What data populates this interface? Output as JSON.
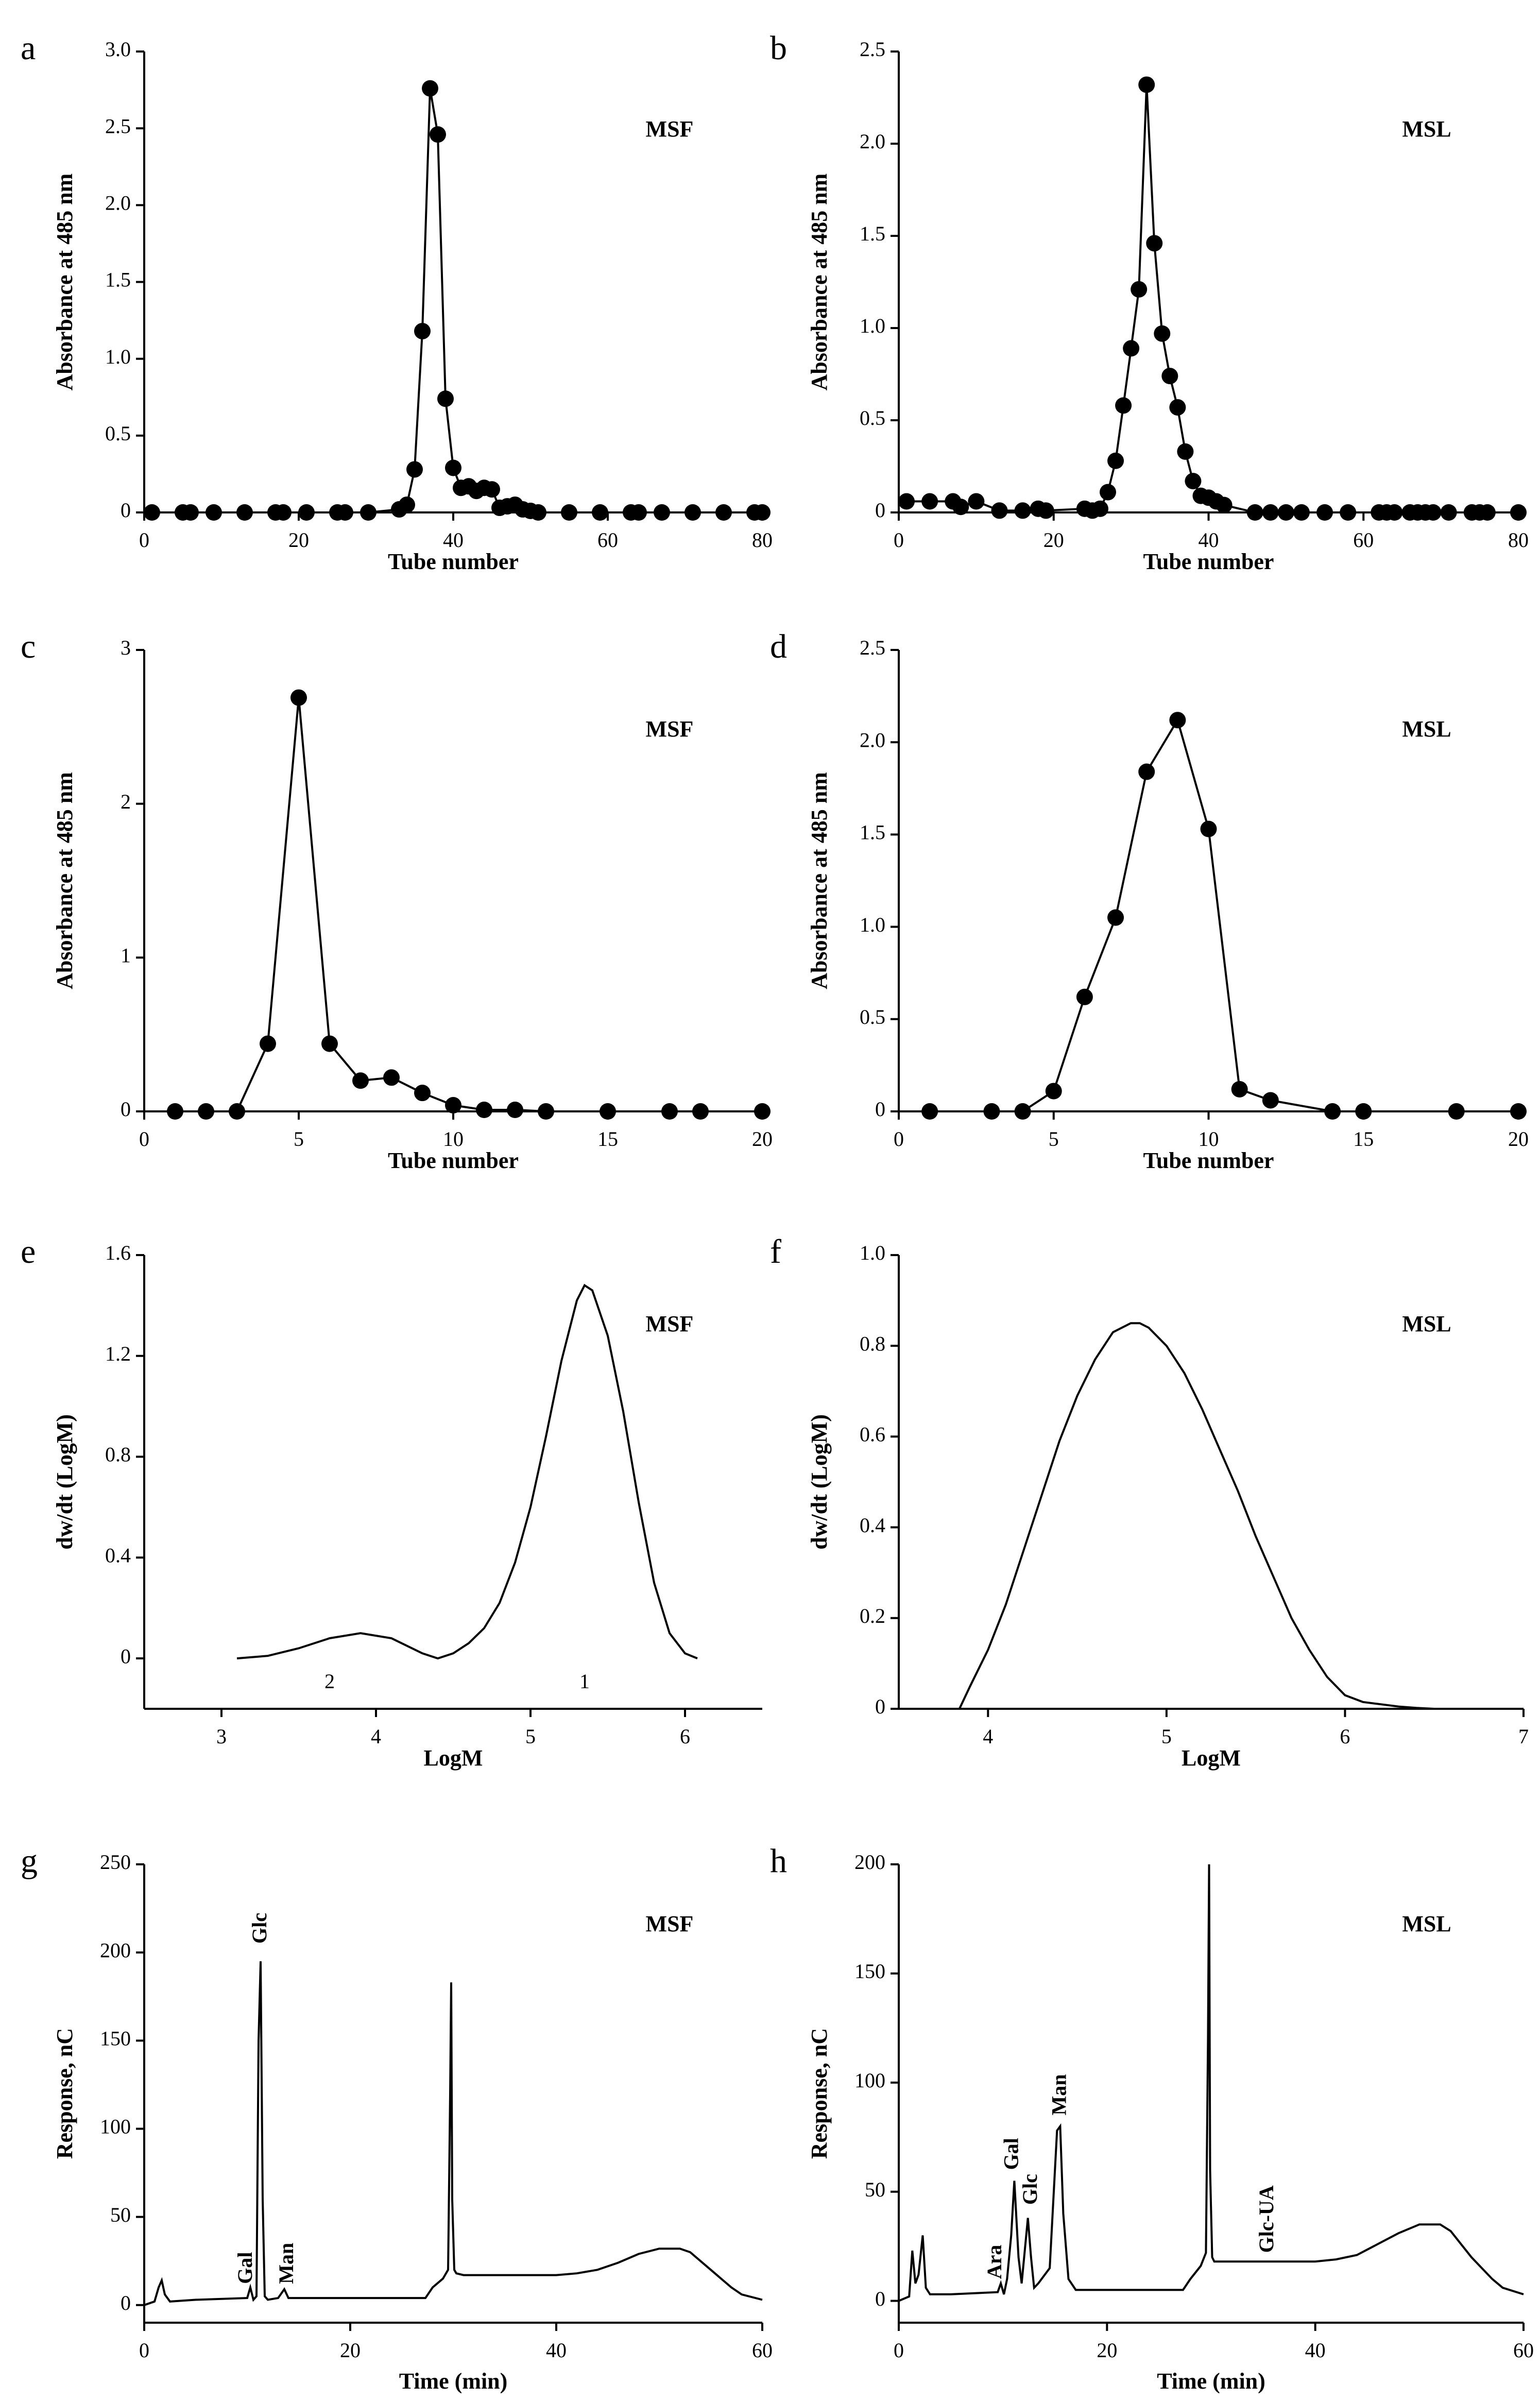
{
  "chart_data": [
    {
      "panel": "a",
      "type": "scatter",
      "connected": true,
      "series_label": "MSF",
      "xlabel": "Tube number",
      "ylabel": "Absorbance at 485 nm",
      "xlim": [
        0,
        80
      ],
      "ylim": [
        0,
        3.0
      ],
      "xticks": [
        0,
        20,
        40,
        60,
        80
      ],
      "yticks": [
        0,
        0.5,
        1.0,
        1.5,
        2.0,
        2.5,
        3.0
      ],
      "ytick_labels": [
        "0",
        "0.5",
        "1.0",
        "1.5",
        "2.0",
        "2.5",
        "3.0"
      ],
      "x": [
        1,
        5,
        6,
        9,
        13,
        17,
        18,
        21,
        25,
        26,
        29,
        33,
        34,
        35,
        36,
        37,
        38,
        39,
        40,
        41,
        42,
        43,
        44,
        45,
        46,
        47,
        48,
        49,
        50,
        51,
        55,
        59,
        63,
        64,
        67,
        71,
        75,
        79,
        80
      ],
      "values": [
        0,
        0,
        0,
        0,
        0,
        0,
        0,
        0,
        0,
        0,
        0,
        0.02,
        0.05,
        0.28,
        1.18,
        2.76,
        2.46,
        0.74,
        0.29,
        0.16,
        0.17,
        0.14,
        0.16,
        0.15,
        0.03,
        0.04,
        0.05,
        0.02,
        0.01,
        0,
        0,
        0,
        0,
        0,
        0,
        0,
        0,
        0,
        0
      ]
    },
    {
      "panel": "b",
      "type": "scatter",
      "connected": true,
      "series_label": "MSL",
      "xlabel": "Tube number",
      "ylabel": "Absorbance at 485 nm",
      "xlim": [
        0,
        80
      ],
      "ylim": [
        0,
        2.5
      ],
      "xticks": [
        0,
        20,
        40,
        60,
        80
      ],
      "yticks": [
        0,
        0.5,
        1.0,
        1.5,
        2.0,
        2.5
      ],
      "ytick_labels": [
        "0",
        "0.5",
        "1.0",
        "1.5",
        "2.0",
        "2.5"
      ],
      "x": [
        1,
        4,
        7,
        8,
        10,
        13,
        16,
        18,
        19,
        24,
        25,
        26,
        27,
        28,
        29,
        30,
        31,
        32,
        33,
        34,
        35,
        36,
        37,
        38,
        39,
        40,
        41,
        42,
        46,
        48,
        50,
        52,
        55,
        58,
        62,
        63,
        64,
        66,
        67,
        68,
        69,
        71,
        74,
        75,
        76,
        80
      ],
      "values": [
        0.06,
        0.06,
        0.06,
        0.03,
        0.06,
        0.01,
        0.01,
        0.02,
        0.01,
        0.02,
        0.01,
        0.02,
        0.11,
        0.28,
        0.58,
        0.89,
        1.21,
        2.32,
        1.46,
        0.97,
        0.74,
        0.57,
        0.33,
        0.17,
        0.09,
        0.08,
        0.06,
        0.04,
        0,
        0,
        0,
        0,
        0,
        0,
        0,
        0,
        0,
        0,
        0,
        0,
        0,
        0,
        0,
        0,
        0,
        0
      ]
    },
    {
      "panel": "c",
      "type": "scatter",
      "connected": true,
      "series_label": "MSF",
      "xlabel": "Tube number",
      "ylabel": "Absorbance at 485 nm",
      "xlim": [
        0,
        20
      ],
      "ylim": [
        0,
        3
      ],
      "xticks": [
        0,
        5,
        10,
        15,
        20
      ],
      "yticks": [
        0,
        1,
        2,
        3
      ],
      "ytick_labels": [
        "0",
        "1",
        "2",
        "3"
      ],
      "x": [
        1,
        2,
        3,
        4,
        5,
        6,
        7,
        8,
        9,
        10,
        11,
        12,
        13,
        15,
        17,
        18,
        20
      ],
      "values": [
        0,
        0,
        0,
        0.44,
        2.69,
        0.44,
        0.2,
        0.22,
        0.12,
        0.04,
        0.01,
        0.01,
        0,
        0,
        0,
        0,
        0
      ]
    },
    {
      "panel": "d",
      "type": "scatter",
      "connected": true,
      "series_label": "MSL",
      "xlabel": "Tube number",
      "ylabel": "Absorbance at 485 nm",
      "xlim": [
        0,
        20
      ],
      "ylim": [
        0,
        2.5
      ],
      "xticks": [
        0,
        5,
        10,
        15,
        20
      ],
      "yticks": [
        0,
        0.5,
        1.0,
        1.5,
        2.0,
        2.5
      ],
      "ytick_labels": [
        "0",
        "0.5",
        "1.0",
        "1.5",
        "2.0",
        "2.5"
      ],
      "x": [
        1,
        3,
        4,
        5,
        6,
        7,
        8,
        9,
        10,
        11,
        12,
        14,
        15,
        18,
        20
      ],
      "values": [
        0,
        0,
        0,
        0.11,
        0.62,
        1.05,
        1.84,
        2.12,
        1.53,
        0.12,
        0.06,
        0,
        0,
        0,
        0
      ]
    },
    {
      "panel": "e",
      "type": "line",
      "series_label": "MSF",
      "xlabel": "LogM",
      "ylabel": "dw/dt (LogM)",
      "xlim": [
        2.5,
        6.5
      ],
      "ylim": [
        -0.2,
        1.6
      ],
      "xticks": [
        3,
        4,
        5,
        6
      ],
      "yticks": [
        0,
        0.4,
        0.8,
        1.2,
        1.6
      ],
      "ytick_labels": [
        "0",
        "0.4",
        "0.8",
        "1.2",
        "1.6"
      ],
      "x": [
        3.1,
        3.3,
        3.5,
        3.7,
        3.9,
        4.1,
        4.3,
        4.4,
        4.5,
        4.6,
        4.7,
        4.8,
        4.9,
        5.0,
        5.1,
        5.2,
        5.3,
        5.35,
        5.4,
        5.5,
        5.6,
        5.7,
        5.8,
        5.9,
        6.0,
        6.08
      ],
      "values": [
        0,
        0.01,
        0.04,
        0.08,
        0.1,
        0.08,
        0.02,
        0.0,
        0.02,
        0.06,
        0.12,
        0.22,
        0.38,
        0.6,
        0.88,
        1.18,
        1.42,
        1.48,
        1.46,
        1.28,
        0.98,
        0.62,
        0.3,
        0.1,
        0.02,
        0
      ],
      "annotations": [
        {
          "text": "2",
          "x": 3.7,
          "y": -0.1
        },
        {
          "text": "1",
          "x": 5.35,
          "y": -0.1
        }
      ]
    },
    {
      "panel": "f",
      "type": "line",
      "series_label": "MSL",
      "xlabel": "LogM",
      "ylabel": "dw/dt (LogM)",
      "xlim": [
        3.5,
        7
      ],
      "ylim": [
        0,
        1.0
      ],
      "xticks": [
        4,
        5,
        6,
        7
      ],
      "yticks": [
        0,
        0.2,
        0.4,
        0.6,
        0.8,
        1.0
      ],
      "ytick_labels": [
        "0",
        "0.2",
        "0.4",
        "0.6",
        "0.8",
        "1.0"
      ],
      "x": [
        3.84,
        3.9,
        4.0,
        4.1,
        4.2,
        4.3,
        4.4,
        4.5,
        4.6,
        4.7,
        4.8,
        4.85,
        4.9,
        5.0,
        5.1,
        5.2,
        5.3,
        5.4,
        5.5,
        5.6,
        5.7,
        5.8,
        5.9,
        6.0,
        6.1,
        6.2,
        6.3,
        6.4,
        6.5
      ],
      "values": [
        0,
        0.05,
        0.13,
        0.23,
        0.35,
        0.47,
        0.59,
        0.69,
        0.77,
        0.83,
        0.85,
        0.85,
        0.84,
        0.8,
        0.74,
        0.66,
        0.57,
        0.48,
        0.38,
        0.29,
        0.2,
        0.13,
        0.07,
        0.03,
        0.015,
        0.01,
        0.005,
        0.002,
        0
      ]
    },
    {
      "panel": "g",
      "type": "line",
      "series_label": "MSF",
      "xlabel": "Time (min)",
      "ylabel": "Response, nC",
      "xlim": [
        0,
        60
      ],
      "ylim": [
        -10,
        250
      ],
      "xticks": [
        0,
        20,
        40,
        60
      ],
      "yticks": [
        0,
        50,
        100,
        150,
        200,
        250
      ],
      "ytick_labels": [
        "0",
        "50",
        "100",
        "150",
        "200",
        "250"
      ],
      "x": [
        0,
        1,
        1.4,
        1.7,
        2.0,
        2.5,
        5,
        10,
        10.3,
        10.6,
        10.9,
        11.1,
        11.3,
        11.5,
        11.7,
        12,
        13,
        13.6,
        14,
        14.5,
        16,
        20,
        25,
        27.3,
        28,
        29,
        29.5,
        29.7,
        29.8,
        29.9,
        30.1,
        30.3,
        31,
        35,
        40,
        42,
        44,
        46,
        48,
        50,
        52,
        53,
        55,
        57,
        58,
        60
      ],
      "values": [
        0,
        2,
        10,
        14,
        6,
        2,
        3,
        4,
        10,
        3,
        5,
        150,
        195,
        60,
        5,
        3,
        4,
        9,
        4,
        4,
        4,
        4,
        4,
        4,
        10,
        15,
        20,
        120,
        183,
        60,
        20,
        18,
        17,
        17,
        17,
        18,
        20,
        24,
        29,
        32,
        32,
        30,
        20,
        10,
        6,
        3
      ],
      "annotations": [
        {
          "text": "Glc",
          "x": 11.4,
          "y": 205,
          "rotated": true
        },
        {
          "text": "Gal",
          "x": 10.0,
          "y": 12,
          "rotated": true
        },
        {
          "text": "Man",
          "x": 14.0,
          "y": 12,
          "rotated": true
        }
      ]
    },
    {
      "panel": "h",
      "type": "line",
      "series_label": "MSL",
      "xlabel": "Time (min)",
      "ylabel": "Response, nC",
      "xlim": [
        0,
        60
      ],
      "ylim": [
        -10,
        200
      ],
      "xticks": [
        0,
        20,
        40,
        60
      ],
      "yticks": [
        0,
        50,
        100,
        150,
        200
      ],
      "ytick_labels": [
        "0",
        "50",
        "100",
        "150",
        "200"
      ],
      "x": [
        0,
        1.0,
        1.3,
        1.6,
        1.9,
        2.3,
        2.6,
        3.0,
        5,
        9.5,
        9.8,
        10.1,
        10.4,
        10.8,
        11.1,
        11.5,
        11.8,
        12.4,
        12.7,
        13.0,
        13.4,
        14.5,
        15.2,
        15.5,
        15.8,
        16.3,
        17,
        20,
        25,
        27.3,
        28,
        29,
        29.5,
        29.7,
        29.8,
        29.9,
        30.1,
        30.3,
        31,
        35,
        40,
        42,
        44,
        46,
        48,
        50,
        52,
        53,
        55,
        57,
        58,
        60
      ],
      "values": [
        0,
        2,
        23,
        8,
        12,
        30,
        6,
        3,
        3,
        4,
        8,
        3,
        10,
        30,
        55,
        20,
        8,
        38,
        20,
        6,
        8,
        15,
        78,
        80,
        40,
        10,
        5,
        5,
        5,
        5,
        10,
        16,
        22,
        120,
        200,
        60,
        20,
        18,
        18,
        18,
        18,
        19,
        21,
        26,
        31,
        35,
        35,
        32,
        20,
        10,
        6,
        3
      ],
      "annotations": [
        {
          "text": "Ara",
          "x": 9.4,
          "y": 10,
          "rotated": true
        },
        {
          "text": "Gal",
          "x": 11.0,
          "y": 60,
          "rotated": true
        },
        {
          "text": "Glc",
          "x": 12.8,
          "y": 44,
          "rotated": true
        },
        {
          "text": "Man",
          "x": 15.6,
          "y": 85,
          "rotated": true
        },
        {
          "text": "Glc-UA",
          "x": 35.5,
          "y": 22,
          "rotated": true
        }
      ]
    }
  ]
}
